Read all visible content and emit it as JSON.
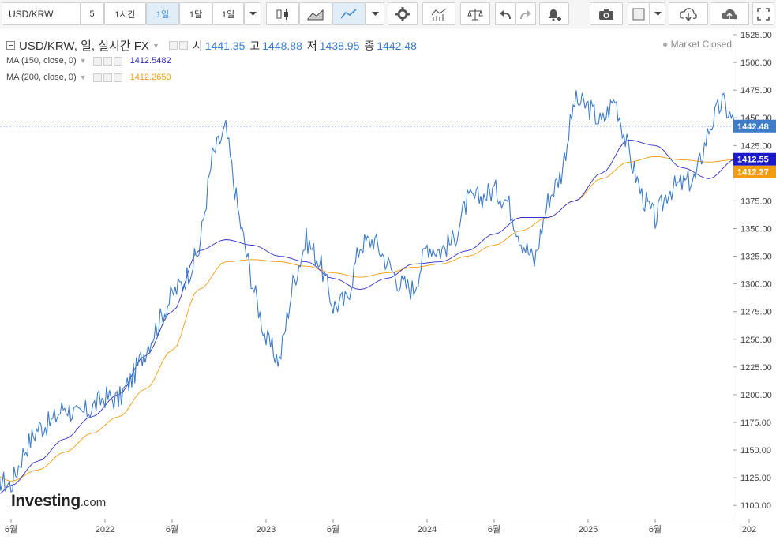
{
  "toolbar": {
    "symbol": "USD/KRW",
    "intervals": [
      "5",
      "1시간",
      "1일",
      "1달",
      "1일"
    ],
    "active_interval_index": 2
  },
  "legend": {
    "title": "USD/KRW, 일, 실시간 FX",
    "open_label": "시",
    "open": "1441.35",
    "high_label": "고",
    "high": "1448.88",
    "low_label": "저",
    "low": "1438.95",
    "close_label": "종",
    "close": "1442.48",
    "ma150_label": "MA (150, close, 0)",
    "ma150_value": "1412.5482",
    "ma200_label": "MA (200, close, 0)",
    "ma200_value": "1412.2650"
  },
  "market_status": "Market Closed",
  "branding": {
    "logo_text": "Investing",
    "logo_suffix": ".com"
  },
  "colors": {
    "price": "#3d7cc9",
    "ma150": "#2e2ec4",
    "ma200": "#f39c12",
    "accent": "#3d89cf"
  },
  "chart_data": {
    "type": "line",
    "title": "USD/KRW",
    "ylim": [
      1088,
      1530
    ],
    "y_ticks": [
      1100,
      1125,
      1150,
      1175,
      1200,
      1225,
      1250,
      1275,
      1300,
      1325,
      1350,
      1375,
      1400,
      1425,
      1450,
      1475,
      1500,
      1525
    ],
    "y_tick_labels": [
      "1100.00",
      "1125.00",
      "1150.00",
      "1175.00",
      "1200.00",
      "1225.00",
      "1250.00",
      "1275.00",
      "1300.00",
      "1325.00",
      "1350.00",
      "1375.00",
      "1400.00",
      "1425.00",
      "1450.00",
      "1475.00",
      "1500.00",
      "1525.00"
    ],
    "x_tick_labels": [
      "6월",
      "2022",
      "6월",
      "2023",
      "6월",
      "2024",
      "6월",
      "2025",
      "6월",
      "202"
    ],
    "x_tick_dates": [
      "2021-06",
      "2022-01",
      "2022-06",
      "2023-01",
      "2023-06",
      "2024-01",
      "2024-06",
      "2025-01",
      "2025-06",
      "2026-01"
    ],
    "last_price_label": "1442.48",
    "series": [
      {
        "name": "USD/KRW",
        "x": [
          "2021-05",
          "2021-06",
          "2021-07",
          "2021-08",
          "2021-09",
          "2021-10",
          "2021-11",
          "2021-12",
          "2022-01",
          "2022-02",
          "2022-03",
          "2022-04",
          "2022-05",
          "2022-06",
          "2022-07",
          "2022-08",
          "2022-09",
          "2022-10",
          "2022-11",
          "2022-12",
          "2023-01",
          "2023-02",
          "2023-03",
          "2023-04",
          "2023-05",
          "2023-06",
          "2023-07",
          "2023-08",
          "2023-09",
          "2023-10",
          "2023-11",
          "2023-12",
          "2024-01",
          "2024-02",
          "2024-03",
          "2024-04",
          "2024-05",
          "2024-06",
          "2024-07",
          "2024-08",
          "2024-09",
          "2024-10",
          "2024-11",
          "2024-12",
          "2025-01",
          "2025-02",
          "2025-03",
          "2025-04",
          "2025-05",
          "2025-06",
          "2025-07",
          "2025-08",
          "2025-09",
          "2025-10",
          "2025-11",
          "2025-12"
        ],
        "values": [
          1124,
          1118,
          1150,
          1170,
          1175,
          1190,
          1180,
          1188,
          1198,
          1195,
          1215,
          1240,
          1265,
          1290,
          1305,
          1330,
          1415,
          1440,
          1360,
          1300,
          1250,
          1230,
          1300,
          1340,
          1320,
          1280,
          1285,
          1335,
          1340,
          1320,
          1300,
          1295,
          1335,
          1330,
          1340,
          1375,
          1378,
          1385,
          1375,
          1340,
          1320,
          1375,
          1400,
          1465,
          1460,
          1445,
          1468,
          1420,
          1380,
          1358,
          1385,
          1390,
          1395,
          1440,
          1465,
          1442
        ]
      },
      {
        "name": "MA (150, close, 0)",
        "x": [
          "2021-05",
          "2021-06",
          "2021-08",
          "2021-10",
          "2021-12",
          "2022-02",
          "2022-04",
          "2022-06",
          "2022-08",
          "2022-10",
          "2022-12",
          "2023-02",
          "2023-04",
          "2023-06",
          "2023-08",
          "2023-10",
          "2023-12",
          "2024-02",
          "2024-04",
          "2024-06",
          "2024-08",
          "2024-10",
          "2024-12",
          "2025-02",
          "2025-04",
          "2025-06",
          "2025-08",
          "2025-10",
          "2025-12"
        ],
        "values": [
          1110,
          1118,
          1140,
          1160,
          1180,
          1200,
          1235,
          1275,
          1330,
          1340,
          1335,
          1325,
          1320,
          1305,
          1295,
          1305,
          1318,
          1320,
          1330,
          1345,
          1360,
          1360,
          1375,
          1400,
          1430,
          1425,
          1405,
          1395,
          1412.55
        ]
      },
      {
        "name": "MA (200, close, 0)",
        "x": [
          "2021-05",
          "2021-06",
          "2021-08",
          "2021-10",
          "2021-12",
          "2022-02",
          "2022-04",
          "2022-06",
          "2022-08",
          "2022-10",
          "2022-12",
          "2023-02",
          "2023-04",
          "2023-06",
          "2023-08",
          "2023-10",
          "2023-12",
          "2024-02",
          "2024-04",
          "2024-06",
          "2024-08",
          "2024-10",
          "2024-12",
          "2025-02",
          "2025-04",
          "2025-06",
          "2025-08",
          "2025-10",
          "2025-12"
        ],
        "values": [
          1126,
          1122,
          1132,
          1148,
          1165,
          1180,
          1205,
          1240,
          1295,
          1320,
          1322,
          1320,
          1316,
          1310,
          1306,
          1310,
          1315,
          1318,
          1325,
          1335,
          1348,
          1360,
          1375,
          1395,
          1410,
          1415,
          1412,
          1410,
          1412.27
        ]
      }
    ]
  }
}
